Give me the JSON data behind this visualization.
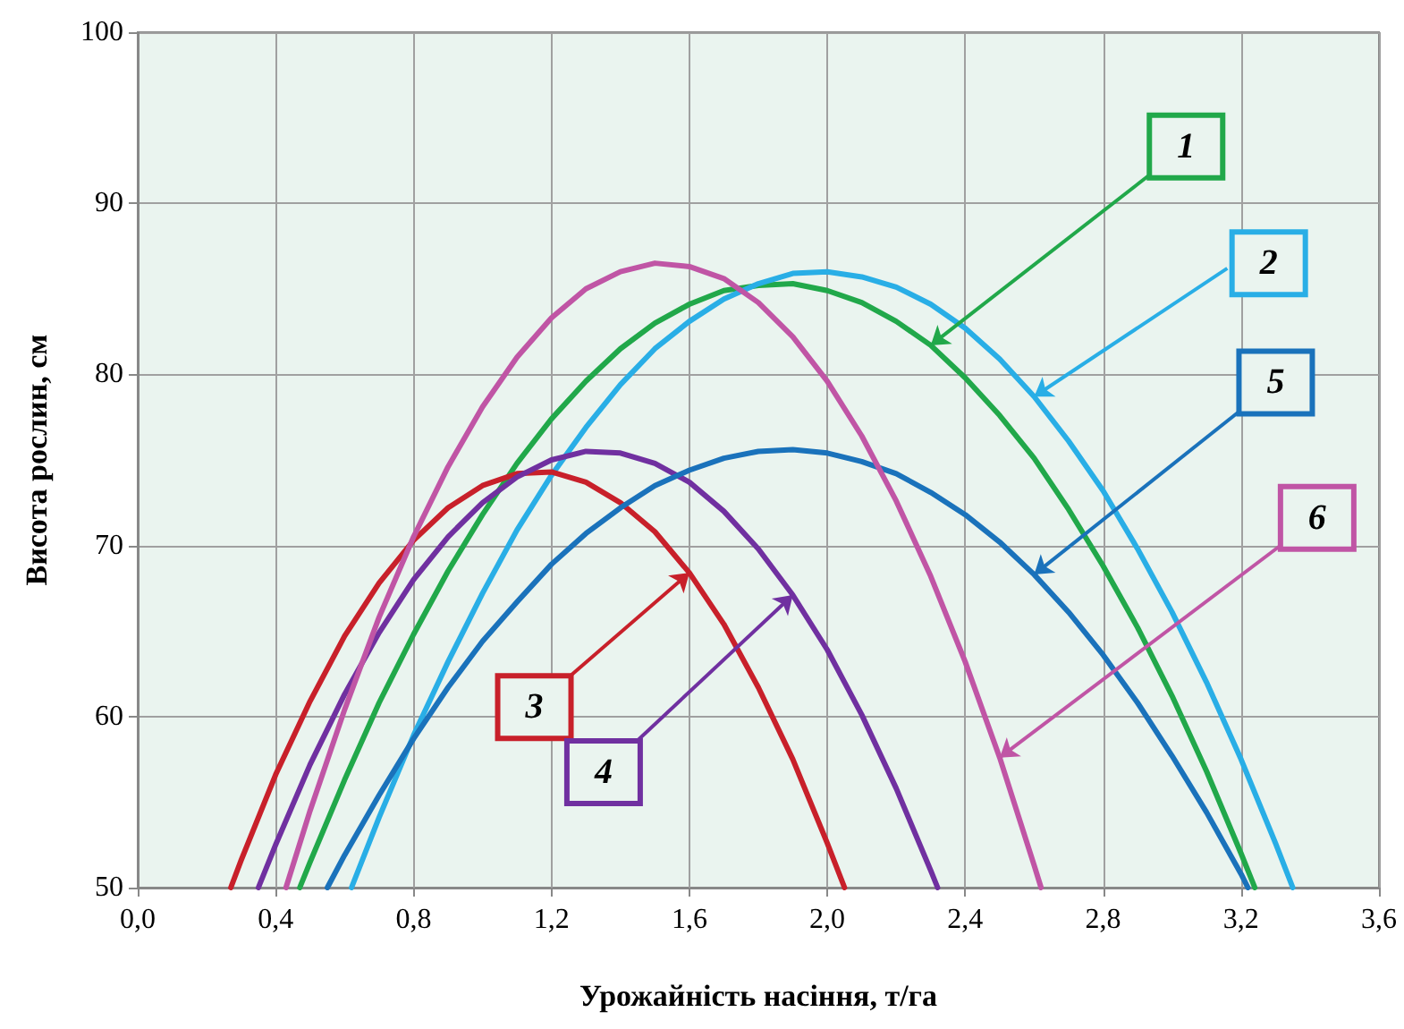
{
  "chart_data": {
    "type": "line",
    "xlabel": "Урожайність насіння, т/га",
    "ylabel": "Висота рослин, см",
    "xlim": [
      0,
      3.6
    ],
    "xticks": [
      {
        "value": 0,
        "label": "0,0"
      },
      {
        "value": 0.4,
        "label": "0,4"
      },
      {
        "value": 0.8,
        "label": "0,8"
      },
      {
        "value": 1.2,
        "label": "1,2"
      },
      {
        "value": 1.6,
        "label": "1,6"
      },
      {
        "value": 2,
        "label": "2,0"
      },
      {
        "value": 2.4,
        "label": "2,4"
      },
      {
        "value": 2.8,
        "label": "2,8"
      },
      {
        "value": 3.2,
        "label": "3,2"
      },
      {
        "value": 3.6,
        "label": "3,6"
      }
    ],
    "ylim": [
      50,
      100
    ],
    "yticks": [
      50,
      60,
      70,
      80,
      90,
      100
    ],
    "grid": true,
    "legend": false,
    "marker": "none",
    "line_style": "solid",
    "series": [
      {
        "name": "1",
        "color": "#21a84a",
        "x": [
          0.47,
          0.5,
          0.6,
          0.7,
          0.8,
          0.9,
          1.0,
          1.1,
          1.2,
          1.3,
          1.4,
          1.5,
          1.6,
          1.7,
          1.8,
          1.9,
          2.0,
          2.1,
          2.2,
          2.3,
          2.4,
          2.5,
          2.6,
          2.7,
          2.8,
          2.9,
          3.0,
          3.1,
          3.2,
          3.24
        ],
        "values": [
          50,
          51.5,
          56.3,
          60.8,
          64.8,
          68.5,
          71.8,
          74.8,
          77.4,
          79.6,
          81.5,
          83.0,
          84.1,
          84.9,
          85.2,
          85.3,
          84.9,
          84.2,
          83.1,
          81.7,
          79.8,
          77.6,
          75.1,
          72.1,
          68.8,
          65.2,
          61.2,
          56.8,
          52.0,
          50
        ]
      },
      {
        "name": "2",
        "color": "#29aee6",
        "x": [
          0.62,
          0.7,
          0.8,
          0.9,
          1.0,
          1.1,
          1.2,
          1.3,
          1.4,
          1.5,
          1.6,
          1.7,
          1.8,
          1.9,
          2.0,
          2.1,
          2.2,
          2.3,
          2.4,
          2.5,
          2.6,
          2.7,
          2.8,
          2.9,
          3.0,
          3.1,
          3.2,
          3.3,
          3.35
        ],
        "values": [
          50,
          54.1,
          58.9,
          63.2,
          67.2,
          70.9,
          74.1,
          76.9,
          79.4,
          81.5,
          83.1,
          84.4,
          85.3,
          85.9,
          86.0,
          85.7,
          85.1,
          84.1,
          82.7,
          80.9,
          78.7,
          76.1,
          73.2,
          69.8,
          66.1,
          62.0,
          57.5,
          52.6,
          50
        ]
      },
      {
        "name": "3",
        "color": "#c8202a",
        "x": [
          0.27,
          0.3,
          0.4,
          0.5,
          0.6,
          0.7,
          0.8,
          0.9,
          1.0,
          1.1,
          1.2,
          1.3,
          1.4,
          1.5,
          1.6,
          1.7,
          1.8,
          1.9,
          2.0,
          2.05
        ],
        "values": [
          50,
          51.6,
          56.6,
          60.9,
          64.7,
          67.8,
          70.3,
          72.2,
          73.5,
          74.2,
          74.3,
          73.7,
          72.5,
          70.8,
          68.4,
          65.4,
          61.7,
          57.5,
          52.6,
          50
        ]
      },
      {
        "name": "4",
        "color": "#7030a0",
        "x": [
          0.35,
          0.4,
          0.5,
          0.6,
          0.7,
          0.8,
          0.9,
          1.0,
          1.1,
          1.2,
          1.3,
          1.4,
          1.5,
          1.6,
          1.7,
          1.8,
          1.9,
          2.0,
          2.1,
          2.2,
          2.3,
          2.32
        ],
        "values": [
          50,
          52.5,
          57.2,
          61.3,
          64.9,
          68.0,
          70.5,
          72.5,
          74.0,
          75.0,
          75.5,
          75.4,
          74.8,
          73.7,
          72.0,
          69.8,
          67.1,
          63.9,
          60.1,
          55.8,
          51.0,
          50
        ]
      },
      {
        "name": "5",
        "color": "#1a72bb",
        "x": [
          0.55,
          0.6,
          0.7,
          0.8,
          0.9,
          1.0,
          1.1,
          1.2,
          1.3,
          1.4,
          1.5,
          1.6,
          1.7,
          1.8,
          1.9,
          2.0,
          2.1,
          2.2,
          2.3,
          2.4,
          2.5,
          2.6,
          2.7,
          2.8,
          2.9,
          3.0,
          3.1,
          3.2,
          3.22
        ],
        "values": [
          50,
          51.9,
          55.4,
          58.7,
          61.7,
          64.4,
          66.7,
          68.9,
          70.7,
          72.2,
          73.5,
          74.4,
          75.1,
          75.5,
          75.6,
          75.4,
          74.9,
          74.2,
          73.1,
          71.8,
          70.2,
          68.3,
          66.1,
          63.6,
          60.8,
          57.7,
          54.4,
          50.8,
          50
        ]
      },
      {
        "name": "6",
        "color": "#c055a5",
        "x": [
          0.43,
          0.5,
          0.6,
          0.7,
          0.8,
          0.9,
          1.0,
          1.1,
          1.2,
          1.3,
          1.4,
          1.5,
          1.6,
          1.7,
          1.8,
          1.9,
          2.0,
          2.1,
          2.2,
          2.3,
          2.4,
          2.5,
          2.6,
          2.62
        ],
        "values": [
          50,
          54.5,
          60.4,
          65.8,
          70.5,
          74.6,
          78.1,
          81.0,
          83.3,
          85.0,
          86.0,
          86.5,
          86.3,
          85.6,
          84.2,
          82.2,
          79.6,
          76.4,
          72.6,
          68.2,
          63.2,
          57.6,
          51.3,
          50
        ]
      }
    ]
  }
}
